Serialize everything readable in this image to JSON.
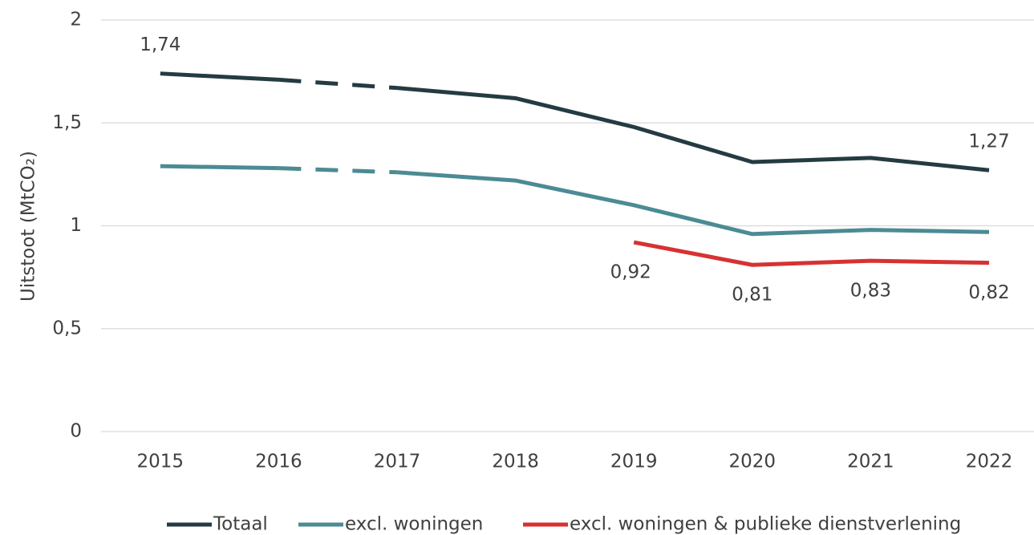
{
  "chart_data": {
    "type": "line",
    "y_label": "Uitstoot (MtCO₂)",
    "categories": [
      "2015",
      "2016",
      "2017",
      "2018",
      "2019",
      "2020",
      "2021",
      "2022"
    ],
    "series": [
      {
        "name": "Totaal",
        "color": "#243b42",
        "values": [
          1.74,
          1.71,
          1.67,
          1.62,
          1.48,
          1.31,
          1.33,
          1.27
        ],
        "value_labels": [
          "1,74",
          null,
          null,
          null,
          null,
          null,
          null,
          "1,27"
        ],
        "dashed_segments": [
          1
        ]
      },
      {
        "name": "excl. woningen",
        "color": "#4b8b94",
        "values": [
          1.29,
          1.28,
          1.26,
          1.22,
          1.1,
          0.96,
          0.98,
          0.97
        ],
        "value_labels": [
          null,
          null,
          null,
          null,
          null,
          null,
          null,
          null
        ],
        "dashed_segments": [
          1
        ]
      },
      {
        "name": "excl. woningen & publieke dienstverlening",
        "color": "#d63232",
        "values": [
          null,
          null,
          null,
          null,
          0.92,
          0.81,
          0.83,
          0.82
        ],
        "value_labels": [
          null,
          null,
          null,
          null,
          "0,92",
          "0,81",
          "0,83",
          "0,82"
        ],
        "dashed_segments": []
      }
    ],
    "ylim": [
      0,
      2
    ],
    "yticks": [
      0,
      {
        "value": 0.5,
        "label": "0,5"
      },
      1,
      {
        "value": 1.5,
        "label": "1,5"
      },
      2
    ],
    "grid": true,
    "legend": "bottom"
  }
}
